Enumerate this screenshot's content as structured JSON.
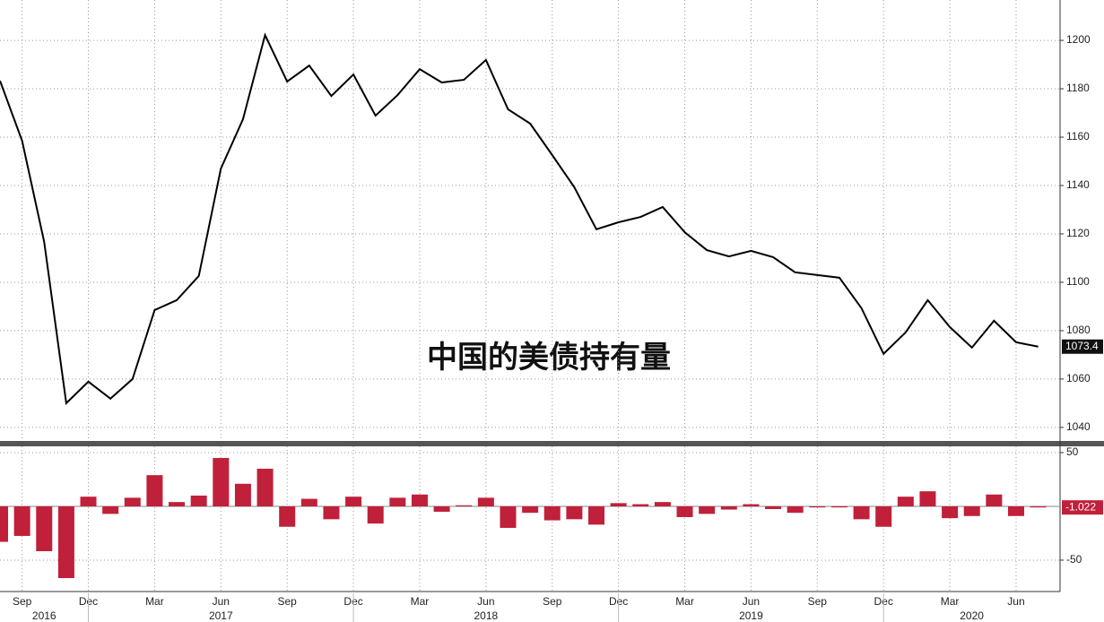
{
  "chart_data": [
    {
      "type": "line",
      "color": "#000000",
      "annotation": "中国的美债持有量",
      "values": [
        1183.3,
        1158.5,
        1116.7,
        1050,
        1058.9,
        1051.9,
        1060,
        1088.5,
        1092.6,
        1102.6,
        1147,
        1167.4,
        1202.2,
        1183,
        1189.6,
        1177,
        1185.9,
        1168.9,
        1177.4,
        1188.1,
        1182.6,
        1183.7,
        1191.9,
        1171.5,
        1165.6,
        1152.6,
        1139.3,
        1121.9,
        1124.8,
        1127,
        1131.1,
        1120.7,
        1113.3,
        1110.7,
        1113,
        1110.4,
        1104.1,
        1103,
        1101.9,
        1089.3,
        1070.4,
        1079.3,
        1092.6,
        1081.5,
        1073,
        1084.1,
        1075.2,
        1073.4
      ],
      "ylim": [
        1034.4,
        1216.7
      ],
      "yticks": [
        1040,
        1060,
        1080,
        1100,
        1120,
        1140,
        1160,
        1180,
        1200
      ],
      "grid": true
    },
    {
      "type": "bar",
      "color": "#c0203a",
      "categories": [
        null,
        "Sep",
        null,
        null,
        "Dec",
        null,
        null,
        "Mar",
        null,
        null,
        "Jun",
        null,
        null,
        "Sep",
        null,
        null,
        "Dec",
        null,
        null,
        "Mar",
        null,
        null,
        "Jun",
        null,
        null,
        "Sep",
        null,
        null,
        "Dec",
        null,
        null,
        "Mar",
        null,
        null,
        "Jun",
        null,
        null,
        "Sep",
        null,
        null,
        "Dec",
        null,
        null,
        "Mar",
        null,
        null,
        "Jun",
        null
      ],
      "years": [
        "2016",
        "2017",
        "2018",
        "2019",
        "2020"
      ],
      "values": [
        -33,
        -27.5,
        -41.7,
        -66.7,
        9,
        -7,
        8,
        29,
        4,
        10,
        45,
        21,
        35,
        -19,
        7,
        -12,
        9,
        -16,
        8,
        11,
        -5,
        1,
        8,
        -20,
        -6,
        -13,
        -12,
        -17,
        3,
        2,
        4,
        -10,
        -7,
        -3,
        2,
        -2.5,
        -6,
        -1,
        -1,
        -12,
        -19,
        9,
        14,
        -11,
        -9,
        11,
        -9,
        -1.022
      ],
      "ylim": [
        -79.2,
        55.8
      ],
      "yticks": [
        -50,
        50
      ],
      "grid": true
    }
  ]
}
